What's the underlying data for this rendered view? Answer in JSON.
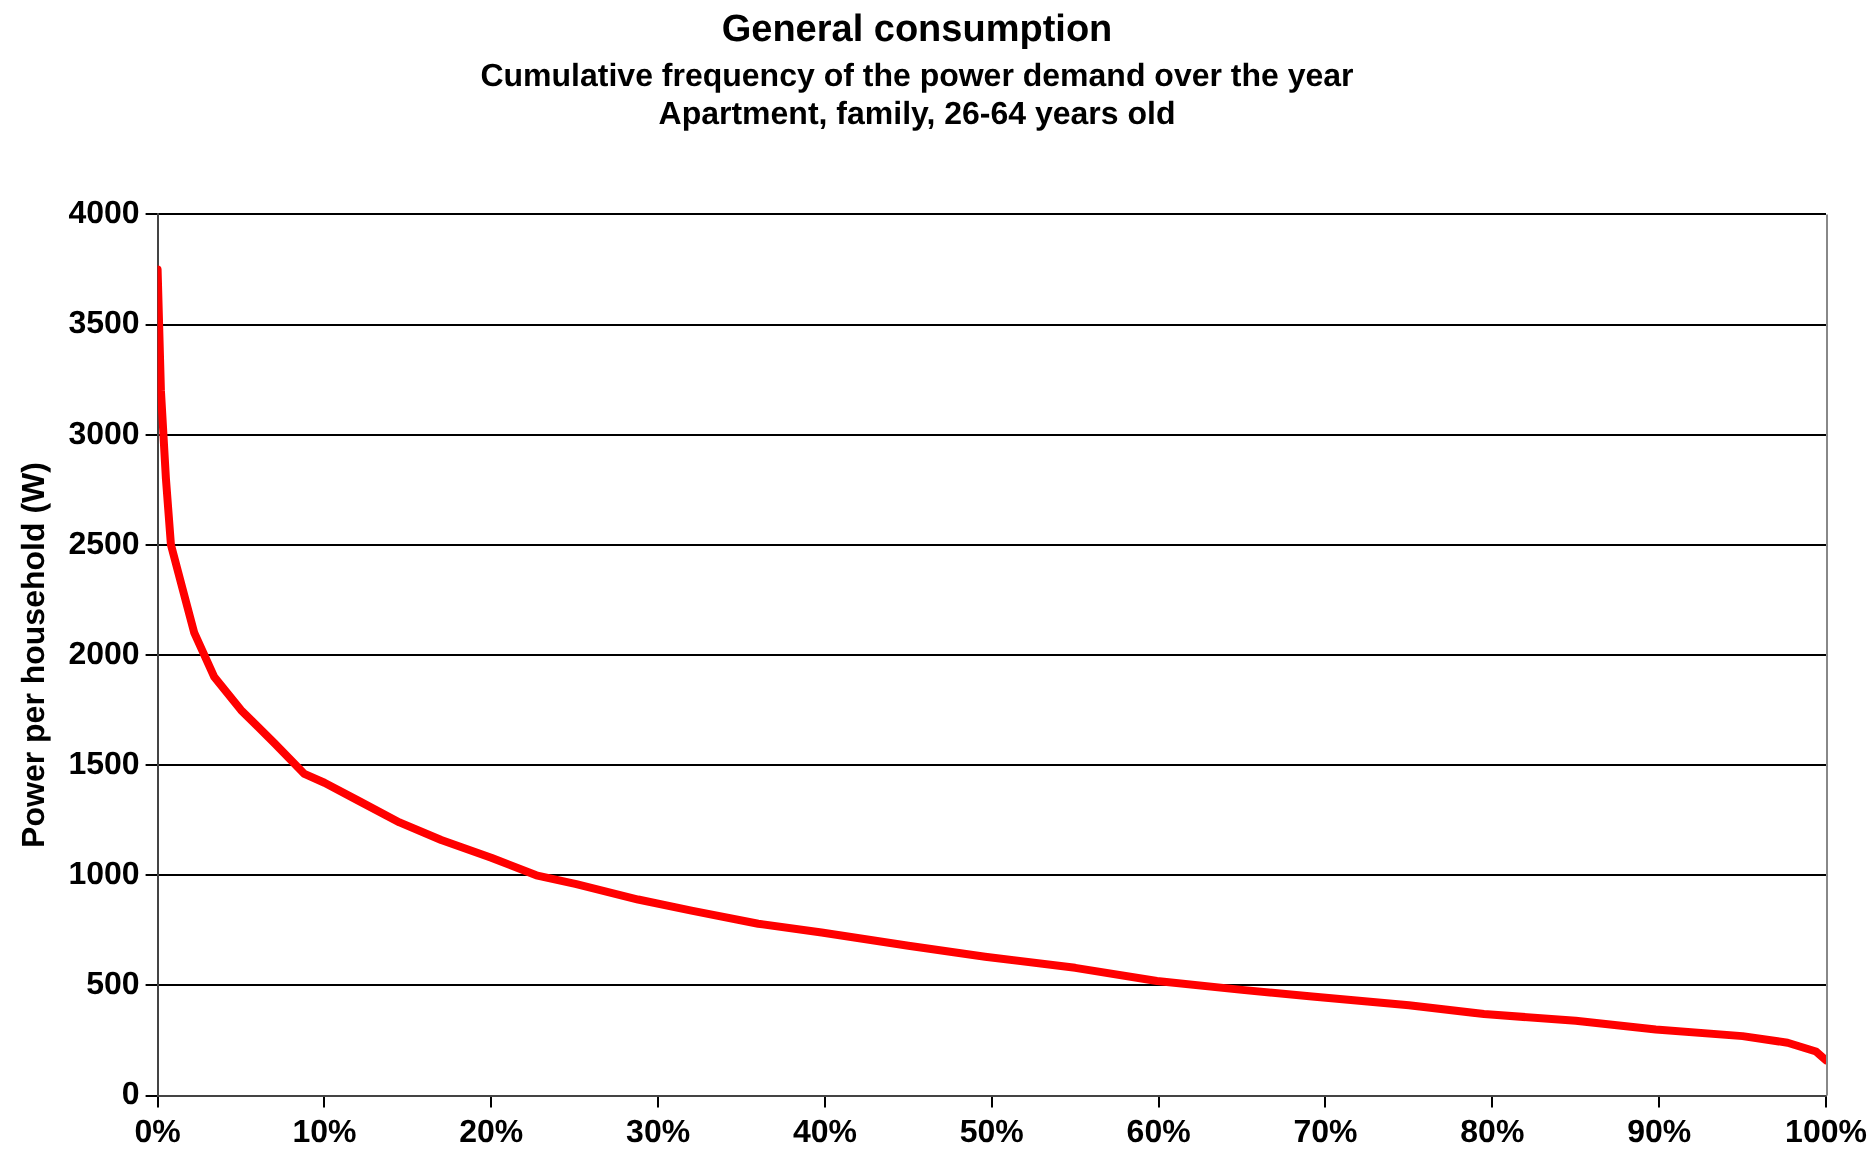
{
  "chart_data": {
    "type": "line",
    "title": "General consumption",
    "subtitle": "Cumulative frequency of the power demand over the year\nApartment, family, 26-64 years old",
    "ylabel": "Power per household (W)",
    "series": [
      {
        "color": "#ff0000",
        "x": [
          0,
          0.2,
          0.5,
          0.8,
          1.5,
          2.2,
          3.4,
          5,
          7,
          8.8,
          10,
          12,
          14.5,
          17,
          20,
          22.7,
          25.1,
          28.8,
          32,
          36,
          39.8,
          45,
          49.6,
          55,
          59.9,
          65,
          69.2,
          75,
          79.5,
          85,
          89.8,
          95,
          97.7,
          99.4,
          100
        ],
        "values": [
          3750,
          3200,
          2800,
          2500,
          2300,
          2100,
          1900,
          1750,
          1600,
          1460,
          1420,
          1340,
          1240,
          1160,
          1080,
          1000,
          960,
          890,
          840,
          780,
          740,
          680,
          630,
          580,
          520,
          480,
          450,
          410,
          370,
          340,
          300,
          270,
          240,
          200,
          160
        ]
      }
    ],
    "xlim": [
      0,
      100
    ],
    "xticks": [
      {
        "value": 0,
        "label": "0%"
      },
      {
        "value": 10,
        "label": "10%"
      },
      {
        "value": 20,
        "label": "20%"
      },
      {
        "value": 30,
        "label": "30%"
      },
      {
        "value": 40,
        "label": "40%"
      },
      {
        "value": 50,
        "label": "50%"
      },
      {
        "value": 60,
        "label": "60%"
      },
      {
        "value": 70,
        "label": "70%"
      },
      {
        "value": 80,
        "label": "80%"
      },
      {
        "value": 90,
        "label": "90%"
      },
      {
        "value": 100,
        "label": "100%"
      }
    ],
    "ylim": [
      0,
      4000
    ],
    "yticks": [
      0,
      500,
      1000,
      1500,
      2000,
      2500,
      3000,
      3500,
      4000
    ],
    "grid": "y",
    "legend": false,
    "marker": "none",
    "line_style": "solid"
  }
}
